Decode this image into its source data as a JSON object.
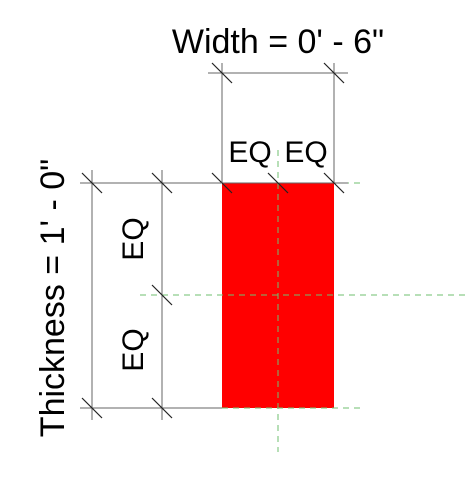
{
  "dimensions": {
    "width_label": "Width = 0' - 6\"",
    "thickness_label": "Thickness = 1' - 0\"",
    "horizontal_eq": [
      "EQ",
      "EQ"
    ],
    "vertical_eq": [
      "EQ",
      "EQ"
    ]
  }
}
